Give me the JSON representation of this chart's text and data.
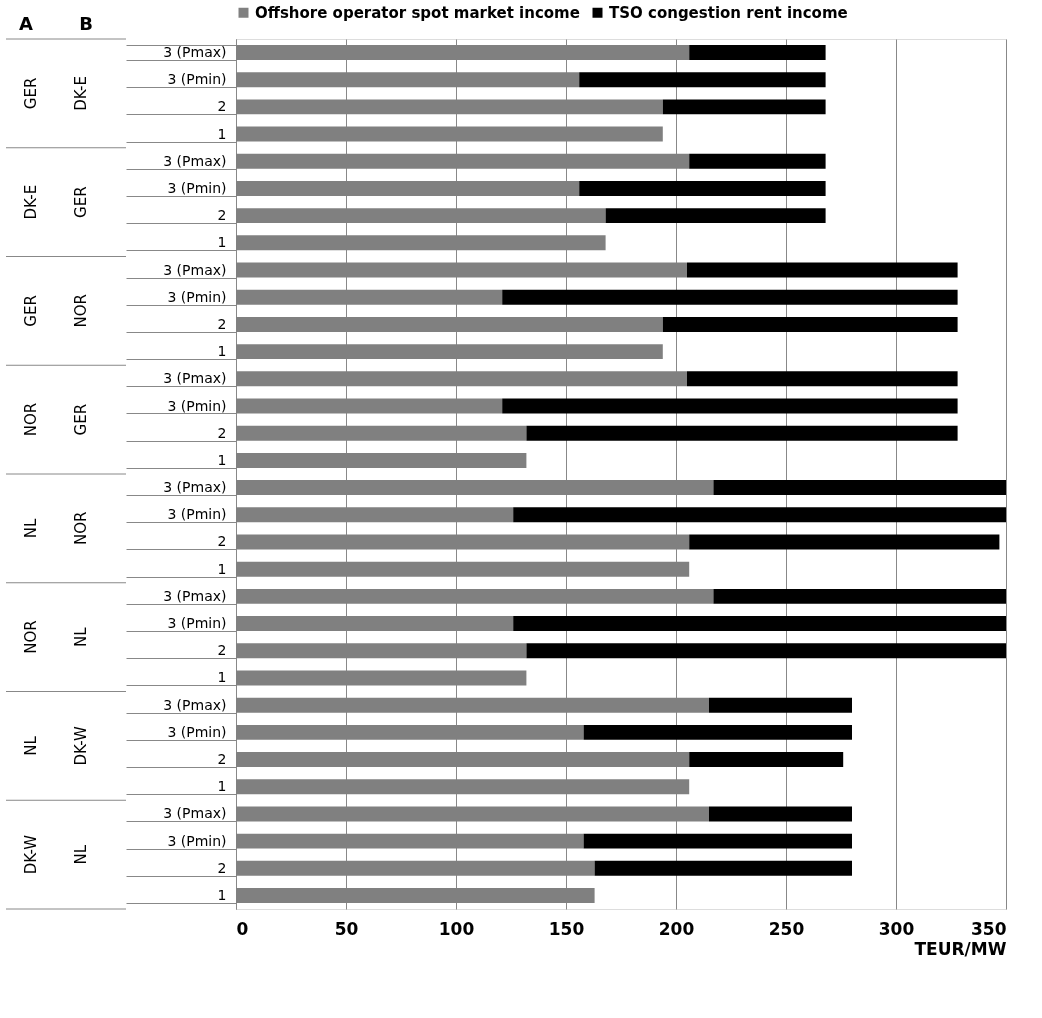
{
  "chart_data": {
    "type": "bar",
    "orientation": "horizontal",
    "stacked": true,
    "xlabel": "TEUR/MW",
    "categories": [
      "3 (Pmax)",
      "3 (Pmin)",
      "2",
      "1",
      "3 (Pmax)",
      "3 (Pmin)",
      "2",
      "1",
      "3 (Pmax)",
      "3 (Pmin)",
      "2",
      "1",
      "3 (Pmax)",
      "3 (Pmin)",
      "2",
      "1",
      "3 (Pmax)",
      "3 (Pmin)",
      "2",
      "1",
      "3 (Pmax)",
      "3 (Pmin)",
      "2",
      "1",
      "3 (Pmax)",
      "3 (Pmin)",
      "2",
      "1",
      "3 (Pmax)",
      "3 (Pmin)",
      "2",
      "1"
    ],
    "series": [
      {
        "name": "Offshore operator spot market income",
        "color": "#808080",
        "values": [
          206,
          156,
          194,
          194,
          206,
          156,
          168,
          168,
          205,
          121,
          194,
          194,
          205,
          121,
          132,
          132,
          217,
          126,
          206,
          206,
          217,
          126,
          132,
          132,
          215,
          158,
          206,
          206,
          215,
          158,
          163,
          163
        ]
      },
      {
        "name": "TSO congestion rent income",
        "color": "#000000",
        "values": [
          62,
          112,
          74,
          null,
          62,
          112,
          100,
          null,
          123,
          207,
          134,
          null,
          123,
          207,
          196,
          null,
          133,
          224,
          141,
          null,
          133,
          224,
          218,
          null,
          65,
          122,
          70,
          null,
          65,
          122,
          117,
          null
        ]
      }
    ],
    "annotations": [
      "A",
      "B",
      "GER",
      "DK-E",
      "DK-E",
      "GER",
      "GER",
      "NOR",
      "NOR",
      "GER",
      "NL",
      "NOR",
      "NOR",
      "NL",
      "NL",
      "DK-W",
      "DK-W",
      "NL"
    ],
    "xlim": [
      0,
      350
    ],
    "xticks": [
      0,
      50,
      100,
      150,
      200,
      250,
      300,
      350
    ],
    "grid": "x",
    "legend": "top"
  }
}
